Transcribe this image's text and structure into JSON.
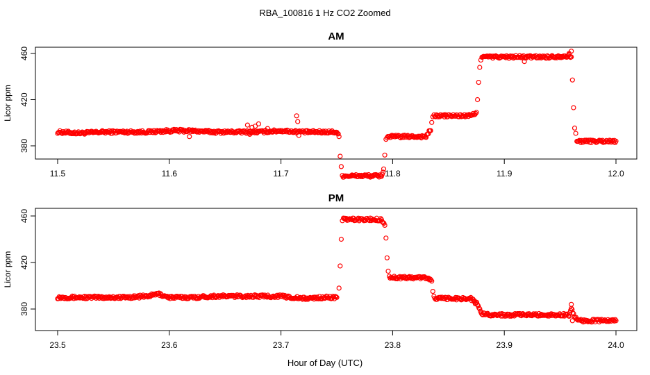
{
  "figure": {
    "title": "RBA_100816  1 Hz CO2 Zoomed",
    "xlabel": "Hour of Day (UTC)"
  },
  "colors": {
    "points": "#ff0000",
    "axis": "#000000"
  },
  "chart_data": [
    {
      "type": "scatter",
      "title": "AM",
      "ylabel": "Licor ppm",
      "xlim": [
        11.5,
        12.0
      ],
      "ylim": [
        350,
        466
      ],
      "xticks": [
        11.5,
        11.6,
        11.7,
        11.8,
        11.9,
        12.0
      ],
      "xtick_labels": [
        "11.5",
        "11.6",
        "11.7",
        "11.8",
        "11.9",
        "12.0"
      ],
      "yticks": [
        380,
        420,
        460
      ],
      "ytick_labels": [
        "380",
        "420",
        "460"
      ],
      "grid": false,
      "series": [
        {
          "x": [
            11.5,
            11.52,
            11.54,
            11.56,
            11.58,
            11.6,
            11.62,
            11.64,
            11.66,
            11.68,
            11.7,
            11.72,
            11.74,
            11.75,
            11.752,
            11.753,
            11.754,
            11.755,
            11.76,
            11.77,
            11.78,
            11.79,
            11.792,
            11.793,
            11.794,
            11.795,
            11.8,
            11.81,
            11.82,
            11.83,
            11.834,
            11.835,
            11.836,
            11.837,
            11.84,
            11.85,
            11.86,
            11.87,
            11.875,
            11.876,
            11.877,
            11.878,
            11.879,
            11.88,
            11.9,
            11.92,
            11.94,
            11.958,
            11.96,
            11.961,
            11.962,
            11.963,
            11.964,
            11.965,
            11.97,
            11.98,
            11.99,
            12.0
          ],
          "y": [
            392,
            391,
            392,
            392,
            392,
            393,
            393,
            392,
            392,
            392,
            393,
            392,
            392,
            392,
            388,
            371,
            362,
            354,
            354,
            354,
            354,
            354,
            360,
            372,
            385,
            388,
            388,
            388,
            388,
            388,
            394,
            400,
            404,
            406,
            406,
            406,
            406,
            406,
            409,
            420,
            435,
            448,
            455,
            457,
            457,
            457,
            457,
            458,
            457,
            437,
            413,
            396,
            390,
            384,
            384,
            384,
            384,
            384
          ]
        },
        {
          "x": [
            11.618,
            11.67,
            11.672,
            11.674,
            11.677,
            11.68,
            11.688,
            11.714,
            11.715,
            11.716,
            11.918,
            11.958,
            11.96
          ],
          "y": [
            388,
            398,
            390,
            396,
            397,
            399,
            395,
            406,
            401,
            389,
            453,
            460,
            462
          ]
        }
      ]
    },
    {
      "type": "scatter",
      "title": "PM",
      "ylabel": "Licor ppm",
      "xlim": [
        23.5,
        24.0
      ],
      "ylim": [
        365,
        468
      ],
      "xticks": [
        23.5,
        23.6,
        23.7,
        23.8,
        23.9,
        24.0
      ],
      "xtick_labels": [
        "23.5",
        "23.6",
        "23.7",
        "23.8",
        "23.9",
        "24.0"
      ],
      "yticks": [
        380,
        420,
        460
      ],
      "ytick_labels": [
        "380",
        "420",
        "460"
      ],
      "grid": false,
      "series": [
        {
          "x": [
            23.5,
            23.52,
            23.54,
            23.56,
            23.58,
            23.59,
            23.6,
            23.62,
            23.64,
            23.66,
            23.68,
            23.7,
            23.72,
            23.74,
            23.75,
            23.752,
            23.753,
            23.754,
            23.755,
            23.756,
            23.76,
            23.77,
            23.78,
            23.79,
            23.793,
            23.794,
            23.795,
            23.796,
            23.797,
            23.8,
            23.81,
            23.82,
            23.83,
            23.835,
            23.836,
            23.837,
            23.84,
            23.85,
            23.86,
            23.87,
            23.876,
            23.878,
            23.88,
            23.89,
            23.9,
            23.92,
            23.94,
            23.958,
            23.96,
            23.962,
            23.965,
            23.97,
            23.98,
            23.99,
            24.0
          ],
          "y": [
            390,
            390,
            390,
            390,
            391,
            393,
            390,
            390,
            391,
            391,
            391,
            391,
            389,
            390,
            390,
            398,
            417,
            440,
            455,
            457,
            457,
            457,
            457,
            457,
            452,
            441,
            424,
            412,
            408,
            407,
            407,
            407,
            407,
            404,
            396,
            390,
            389,
            389,
            389,
            389,
            384,
            379,
            376,
            375,
            375,
            375,
            375,
            375,
            381,
            375,
            371,
            370,
            370,
            370,
            370
          ]
        },
        {
          "x": [
            23.96,
            23.961
          ],
          "y": [
            384,
            370
          ]
        }
      ]
    }
  ]
}
